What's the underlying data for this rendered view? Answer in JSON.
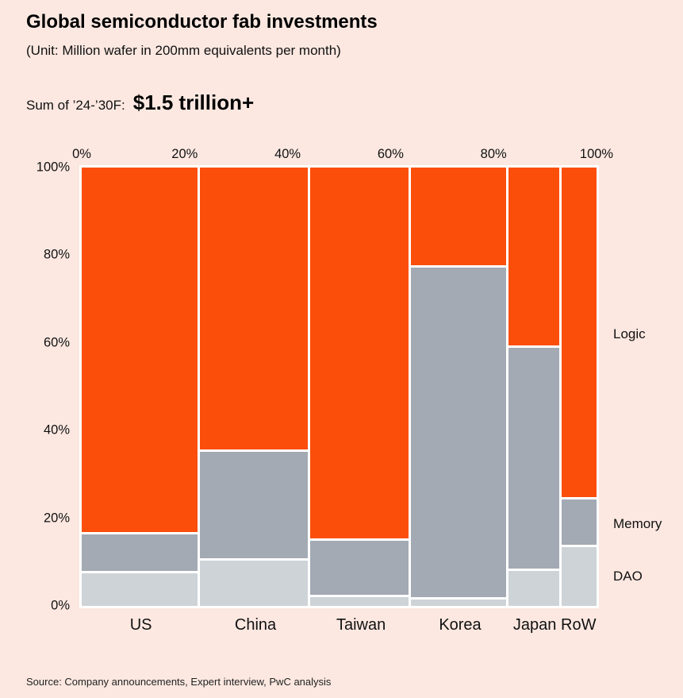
{
  "page": {
    "background_color": "#FCE8E1",
    "title": "Global semiconductor fab investments",
    "subtitle": "(Unit: Million wafer in 200mm equivalents per month)",
    "sum_label": "Sum of ’24-’30F:",
    "sum_value": "$1.5 trillion+",
    "source": "Source: Company announcements, Expert interview, PwC analysis"
  },
  "chart_data": {
    "type": "mosaic",
    "title": "Global semiconductor fab investments",
    "subtitle": "(Unit: Million wafer in 200mm equivalents per month)",
    "categories": [
      "US",
      "China",
      "Taiwan",
      "Korea",
      "Japan",
      "RoW"
    ],
    "column_widths_pct": [
      23,
      21.5,
      19.5,
      19,
      10,
      7
    ],
    "series": [
      {
        "name": "Logic",
        "color": "#FB4E0A",
        "values": [
          84,
          65,
          85.5,
          22.5,
          41,
          76
        ]
      },
      {
        "name": "Memory",
        "color": "#A3AAB4",
        "values": [
          8.5,
          24.5,
          12.5,
          76,
          51,
          10.5
        ]
      },
      {
        "name": "DAO",
        "color": "#CDD3D7",
        "values": [
          7.5,
          10.5,
          2,
          1.5,
          8,
          13.5
        ]
      }
    ],
    "stack_order_bottom_to_top": [
      "DAO",
      "Memory",
      "Logic"
    ],
    "x_axis_ticks": [
      "0%",
      "20%",
      "40%",
      "60%",
      "80%",
      "100%"
    ],
    "y_axis_ticks": [
      "0%",
      "20%",
      "40%",
      "60%",
      "80%",
      "100%"
    ],
    "x_range_pct": [
      0,
      100
    ],
    "y_range_pct": [
      0,
      100
    ],
    "grid": false,
    "legend_position": "right",
    "gap_color": "#FFFFFF"
  }
}
